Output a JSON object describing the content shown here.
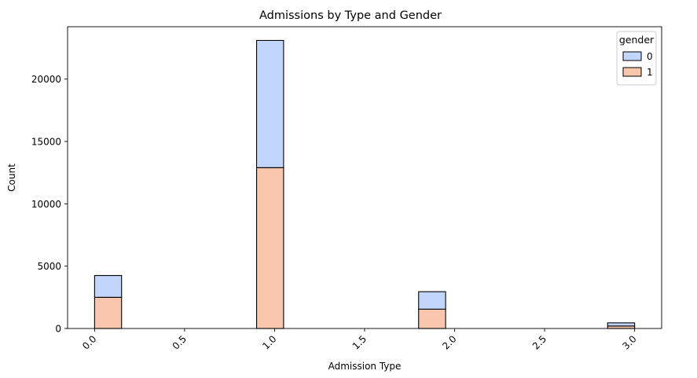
{
  "chart_data": {
    "type": "bar",
    "stacked": true,
    "title": "Admissions by Type and Gender",
    "xlabel": "Admission Type",
    "ylabel": "Count",
    "xlim": [
      -0.15,
      3.15
    ],
    "ylim": [
      0,
      24200
    ],
    "x_ticks": [
      0.0,
      0.5,
      1.0,
      1.5,
      2.0,
      2.5,
      3.0
    ],
    "x_tick_labels": [
      "0.0",
      "0.5",
      "1.0",
      "1.5",
      "2.0",
      "2.5",
      "3.0"
    ],
    "y_ticks": [
      0,
      5000,
      10000,
      15000,
      20000
    ],
    "y_tick_labels": [
      "0",
      "5000",
      "10000",
      "15000",
      "20000"
    ],
    "bin_width": 0.15,
    "bin_starts": [
      0.0,
      0.15,
      0.3,
      0.45,
      0.6,
      0.75,
      0.9,
      1.05,
      1.2,
      1.35,
      1.5,
      1.65,
      1.8,
      1.95,
      2.1,
      2.25,
      2.4,
      2.55,
      2.7,
      2.85
    ],
    "series": [
      {
        "name": "1",
        "color": "#f7c6ad",
        "values": [
          2500,
          0,
          0,
          0,
          0,
          0,
          12900,
          0,
          0,
          0,
          0,
          0,
          1550,
          0,
          0,
          0,
          0,
          0,
          0,
          200
        ]
      },
      {
        "name": "0",
        "color": "#c2d5fb",
        "values": [
          1750,
          0,
          0,
          0,
          0,
          0,
          10200,
          0,
          0,
          0,
          0,
          0,
          1400,
          0,
          0,
          0,
          0,
          0,
          0,
          250
        ]
      }
    ],
    "legend": {
      "title": "gender",
      "placement": "top-right",
      "entries": [
        {
          "label": "0",
          "color": "#c2d5fb"
        },
        {
          "label": "1",
          "color": "#f7c6ad"
        }
      ]
    },
    "grid": false
  }
}
